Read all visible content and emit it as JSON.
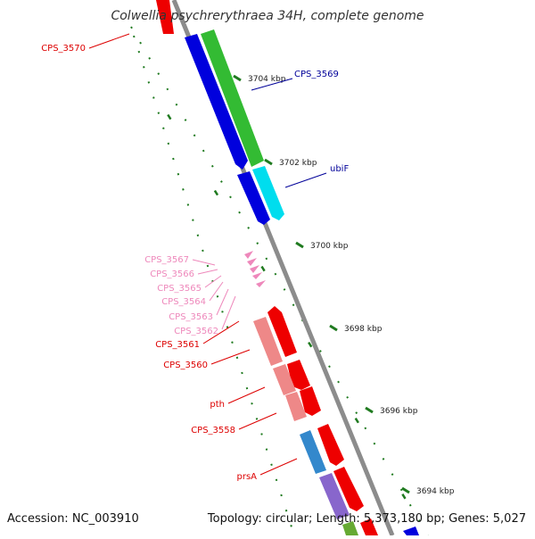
{
  "title": "Colwellia psychrerythraea 34H, complete genome",
  "footer": {
    "accession": "Accession: NC_003910",
    "summary": "Topology: circular; Length: 5,373,180 bp; Genes: 5,027"
  },
  "colors": {
    "backbone": "#8c8c8c",
    "tick": "#1f7a1f",
    "label_red": "#dd0000",
    "label_blue": "#000099",
    "label_pink": "#ee88bb"
  },
  "ticks": [
    {
      "name": "tick-3704",
      "label": "3704 kbp"
    },
    {
      "name": "tick-3702",
      "label": "3702 kbp"
    },
    {
      "name": "tick-3700",
      "label": "3700 kbp"
    },
    {
      "name": "tick-3698",
      "label": "3698 kbp"
    },
    {
      "name": "tick-3696",
      "label": "3696 kbp"
    },
    {
      "name": "tick-3694",
      "label": "3694 kbp"
    }
  ],
  "gene_labels": [
    {
      "name": "gene-label-cps-3570",
      "text": "CPS_3570",
      "color": "#dd0000"
    },
    {
      "name": "gene-label-cps-3569",
      "text": "CPS_3569",
      "color": "#000099"
    },
    {
      "name": "gene-label-ubif",
      "text": "ubiF",
      "color": "#000099"
    },
    {
      "name": "gene-label-cps-3567",
      "text": "CPS_3567",
      "color": "#ee88bb"
    },
    {
      "name": "gene-label-cps-3566",
      "text": "CPS_3566",
      "color": "#ee88bb"
    },
    {
      "name": "gene-label-cps-3565",
      "text": "CPS_3565",
      "color": "#ee88bb"
    },
    {
      "name": "gene-label-cps-3564",
      "text": "CPS_3564",
      "color": "#ee88bb"
    },
    {
      "name": "gene-label-cps-3563",
      "text": "CPS_3563",
      "color": "#ee88bb"
    },
    {
      "name": "gene-label-cps-3562",
      "text": "CPS_3562",
      "color": "#ee88bb"
    },
    {
      "name": "gene-label-cps-3561",
      "text": "CPS_3561",
      "color": "#dd0000"
    },
    {
      "name": "gene-label-cps-3560",
      "text": "CPS_3560",
      "color": "#dd0000"
    },
    {
      "name": "gene-label-pth",
      "text": "pth",
      "color": "#dd0000"
    },
    {
      "name": "gene-label-cps-3558",
      "text": "CPS_3558",
      "color": "#dd0000"
    },
    {
      "name": "gene-label-prsa",
      "text": "prsA",
      "color": "#dd0000"
    }
  ]
}
